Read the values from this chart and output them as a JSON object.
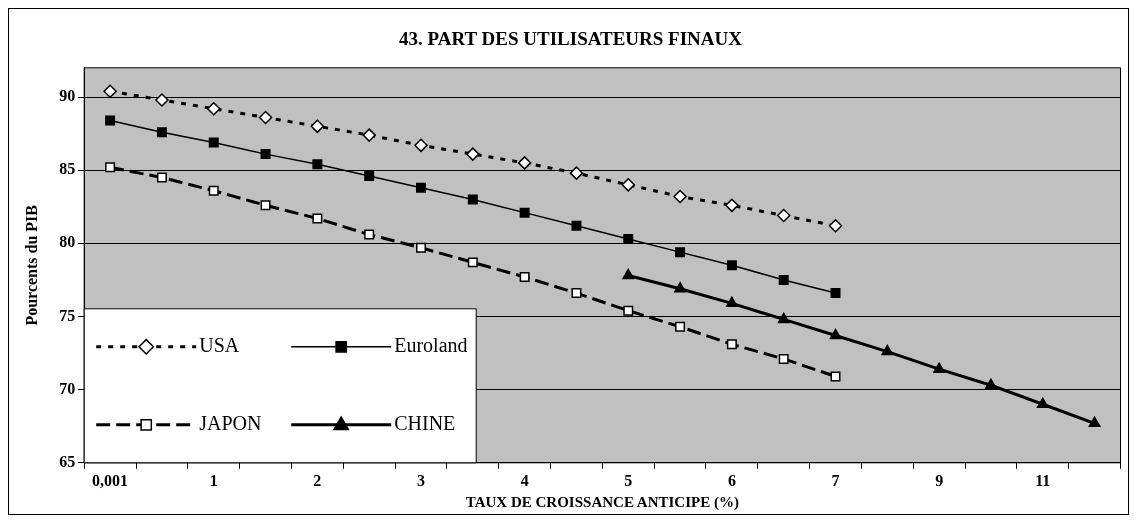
{
  "chart_data": {
    "type": "line",
    "title": "43. PART DES UTILISATEURS FINAUX",
    "xlabel": "TAUX DE CROISSANCE ANTICIPE (%)",
    "ylabel": "Pourcents du PIB",
    "categories": [
      "0,001",
      null,
      "1",
      null,
      "2",
      null,
      "3",
      null,
      "4",
      null,
      "5",
      null,
      "6",
      null,
      "7",
      null,
      "9",
      null,
      "11",
      null
    ],
    "series": [
      {
        "name": "USA",
        "color": "#000000",
        "marker": "diamond",
        "line_style": "dotted",
        "values": [
          90.4,
          89.8,
          89.2,
          88.6,
          88.0,
          87.4,
          86.7,
          86.1,
          85.5,
          84.8,
          84.0,
          83.2,
          82.6,
          81.9,
          81.2,
          null,
          null,
          null,
          null,
          null
        ]
      },
      {
        "name": "Euroland",
        "color": "#000000",
        "marker": "square",
        "line_style": "solid",
        "values": [
          88.4,
          87.6,
          86.9,
          86.1,
          85.4,
          84.6,
          83.8,
          83.0,
          82.1,
          81.2,
          80.3,
          79.4,
          78.5,
          77.5,
          76.6,
          null,
          null,
          null,
          null,
          null
        ]
      },
      {
        "name": "JAPON",
        "color": "#000000",
        "marker": "square",
        "line_style": "dashed",
        "values": [
          85.2,
          84.5,
          83.6,
          82.6,
          81.7,
          80.6,
          79.7,
          78.7,
          77.7,
          76.6,
          75.4,
          74.3,
          73.1,
          72.1,
          70.9,
          null,
          null,
          null,
          null,
          null
        ]
      },
      {
        "name": "CHINE",
        "color": "#000000",
        "marker": "triangle",
        "line_style": "solid",
        "values": [
          null,
          null,
          null,
          null,
          null,
          null,
          null,
          null,
          null,
          null,
          77.8,
          76.9,
          75.9,
          74.8,
          73.7,
          72.6,
          71.4,
          70.3,
          69.0,
          67.7
        ]
      }
    ],
    "ylim": [
      65,
      92
    ],
    "yticks": [
      65,
      70,
      75,
      80,
      85,
      90
    ],
    "grid": "y",
    "legend": "bottom left"
  }
}
